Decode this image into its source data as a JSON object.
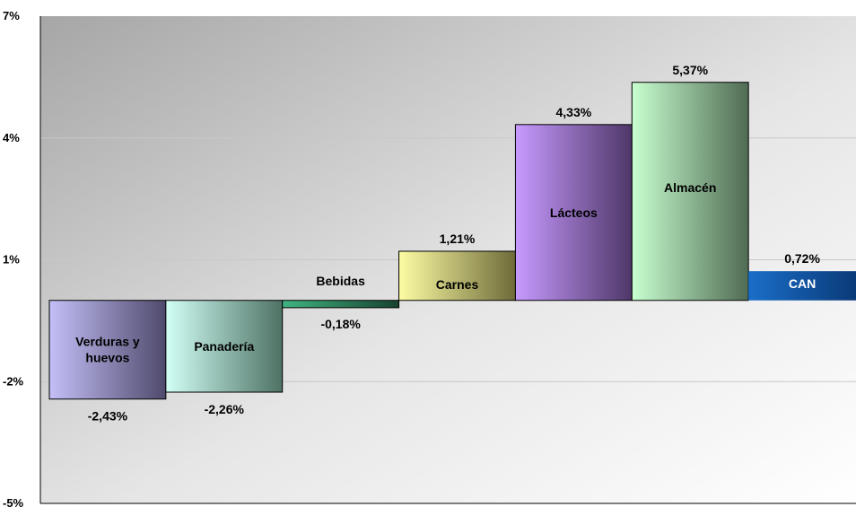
{
  "chart_data": {
    "type": "bar",
    "title": "",
    "xlabel": "",
    "ylabel": "",
    "ylim": [
      -5,
      7
    ],
    "yticks": [
      "7%",
      "4%",
      "1%",
      "-2%",
      "-5%"
    ],
    "ytick_values": [
      7,
      4,
      1,
      -2,
      -5
    ],
    "grid": true,
    "categories": [
      "Verduras y huevos",
      "Panadería",
      "Bebidas",
      "Carnes",
      "Lácteos",
      "Almacén",
      "CAN"
    ],
    "category_lines": [
      [
        "Verduras y",
        "huevos"
      ],
      [
        "Panadería"
      ],
      [
        "Bebidas"
      ],
      [
        "Carnes"
      ],
      [
        "Lácteos"
      ],
      [
        "Almacén"
      ],
      [
        "CAN"
      ]
    ],
    "values": [
      -2.43,
      -2.26,
      -0.18,
      1.21,
      4.33,
      5.37,
      0.72
    ],
    "value_labels": [
      "-2,43%",
      "-2,26%",
      "-0,18%",
      "1,21%",
      "4,33%",
      "5,37%",
      "0,72%"
    ],
    "colors": [
      [
        "#c4c0f8",
        "#4f4a6c"
      ],
      [
        "#d2fff6",
        "#4e7264"
      ],
      [
        "#3fb483",
        "#17432e"
      ],
      [
        "#fdfda4",
        "#6f6b3a"
      ],
      [
        "#c79aff",
        "#4e3768"
      ],
      [
        "#c8ffd0",
        "#506b53"
      ],
      [
        "#1a6ec8",
        "#0a3a78"
      ]
    ]
  }
}
